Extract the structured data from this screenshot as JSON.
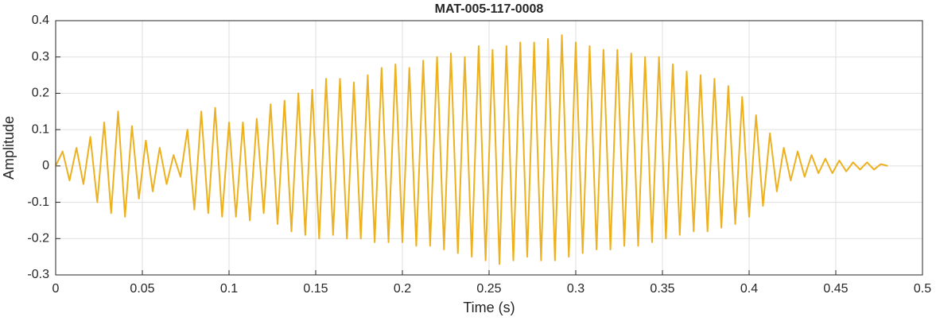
{
  "chart_data": {
    "type": "line",
    "title": "MAT-005-117-0008",
    "xlabel": "Time (s)",
    "ylabel": "Amplitude",
    "x": [
      0,
      0.004,
      0.008,
      0.012,
      0.016,
      0.02,
      0.024,
      0.028,
      0.032,
      0.036,
      0.04,
      0.044,
      0.048,
      0.052,
      0.056,
      0.06,
      0.064,
      0.068,
      0.072,
      0.076,
      0.08,
      0.084,
      0.088,
      0.092,
      0.096,
      0.1,
      0.104,
      0.108,
      0.112,
      0.116,
      0.12,
      0.124,
      0.128,
      0.132,
      0.136,
      0.14,
      0.144,
      0.148,
      0.152,
      0.156,
      0.16,
      0.164,
      0.168,
      0.172,
      0.176,
      0.18,
      0.184,
      0.188,
      0.192,
      0.196,
      0.2,
      0.204,
      0.208,
      0.212,
      0.216,
      0.22,
      0.224,
      0.228,
      0.232,
      0.236,
      0.24,
      0.244,
      0.248,
      0.252,
      0.256,
      0.26,
      0.264,
      0.268,
      0.272,
      0.276,
      0.28,
      0.284,
      0.288,
      0.292,
      0.296,
      0.3,
      0.304,
      0.308,
      0.312,
      0.316,
      0.32,
      0.324,
      0.328,
      0.332,
      0.336,
      0.34,
      0.344,
      0.348,
      0.352,
      0.356,
      0.36,
      0.364,
      0.368,
      0.372,
      0.376,
      0.38,
      0.384,
      0.388,
      0.392,
      0.396,
      0.4,
      0.404,
      0.408,
      0.412,
      0.416,
      0.42,
      0.424,
      0.428,
      0.432,
      0.436,
      0.44,
      0.444,
      0.448,
      0.452,
      0.456,
      0.46,
      0.464,
      0.468,
      0.472,
      0.476,
      0.48
    ],
    "series": [
      {
        "color": "#EDB120",
        "values": [
          0,
          0.04,
          -0.04,
          0.05,
          -0.05,
          0.08,
          -0.1,
          0.12,
          -0.13,
          0.15,
          -0.14,
          0.11,
          -0.09,
          0.07,
          -0.07,
          0.05,
          -0.05,
          0.03,
          -0.03,
          0.1,
          -0.12,
          0.15,
          -0.13,
          0.16,
          -0.14,
          0.12,
          -0.14,
          0.12,
          -0.15,
          0.13,
          -0.13,
          0.17,
          -0.16,
          0.18,
          -0.18,
          0.2,
          -0.19,
          0.21,
          -0.2,
          0.24,
          -0.19,
          0.24,
          -0.2,
          0.23,
          -0.2,
          0.25,
          -0.21,
          0.27,
          -0.21,
          0.28,
          -0.21,
          0.27,
          -0.22,
          0.29,
          -0.22,
          0.3,
          -0.23,
          0.31,
          -0.24,
          0.3,
          -0.25,
          0.33,
          -0.26,
          0.32,
          -0.27,
          0.33,
          -0.26,
          0.34,
          -0.25,
          0.34,
          -0.26,
          0.35,
          -0.26,
          0.36,
          -0.25,
          0.34,
          -0.24,
          0.33,
          -0.23,
          0.32,
          -0.23,
          0.32,
          -0.22,
          0.31,
          -0.22,
          0.3,
          -0.21,
          0.3,
          -0.2,
          0.28,
          -0.19,
          0.26,
          -0.18,
          0.25,
          -0.18,
          0.24,
          -0.17,
          0.22,
          -0.16,
          0.19,
          -0.14,
          0.14,
          -0.11,
          0.09,
          -0.07,
          0.05,
          -0.04,
          0.04,
          -0.03,
          0.03,
          -0.02,
          0.02,
          -0.02,
          0.015,
          -0.015,
          0.01,
          -0.01,
          0.01,
          -0.01,
          0.005,
          0
        ]
      }
    ],
    "xlim": [
      0,
      0.5
    ],
    "xticks": [
      0,
      0.05,
      0.1,
      0.15,
      0.2,
      0.25,
      0.3,
      0.35,
      0.4,
      0.45,
      0.5
    ],
    "ylim": [
      -0.3,
      0.4
    ],
    "yticks": [
      -0.3,
      -0.2,
      -0.1,
      0,
      0.1,
      0.2,
      0.3,
      0.4
    ],
    "grid": true
  }
}
